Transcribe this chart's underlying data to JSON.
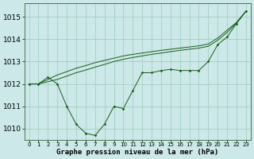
{
  "xlabel": "Graphe pression niveau de la mer (hPa)",
  "background_color": "#cce8e8",
  "grid_color": "#99ccbb",
  "line_color": "#1a5c1a",
  "x": [
    0,
    1,
    2,
    3,
    4,
    5,
    6,
    7,
    8,
    9,
    10,
    11,
    12,
    13,
    14,
    15,
    16,
    17,
    18,
    19,
    20,
    21,
    22,
    23
  ],
  "y_jagged": [
    1012.0,
    1012.0,
    1012.3,
    1012.0,
    1011.0,
    1010.2,
    1009.8,
    1009.7,
    1010.2,
    1011.0,
    1010.9,
    1011.7,
    1012.5,
    1012.5,
    1012.6,
    1012.65,
    1012.6,
    1012.6,
    1012.6,
    1013.0,
    1013.75,
    1014.1,
    1014.7,
    1015.25
  ],
  "y_line2": [
    1012.0,
    1012.0,
    1012.2,
    1012.4,
    1012.55,
    1012.7,
    1012.82,
    1012.95,
    1013.05,
    1013.15,
    1013.25,
    1013.32,
    1013.38,
    1013.44,
    1013.5,
    1013.55,
    1013.6,
    1013.65,
    1013.7,
    1013.78,
    1014.05,
    1014.4,
    1014.75,
    1015.25
  ],
  "y_line3": [
    1012.0,
    1012.0,
    1012.1,
    1012.2,
    1012.35,
    1012.5,
    1012.62,
    1012.75,
    1012.87,
    1013.0,
    1013.1,
    1013.18,
    1013.25,
    1013.32,
    1013.38,
    1013.44,
    1013.5,
    1013.55,
    1013.6,
    1013.68,
    1013.95,
    1014.3,
    1014.72,
    1015.25
  ],
  "ylim": [
    1009.5,
    1015.6
  ],
  "yticks": [
    1010,
    1011,
    1012,
    1013,
    1014,
    1015
  ],
  "xlim": [
    -0.5,
    23.5
  ],
  "xticks": [
    0,
    1,
    2,
    3,
    4,
    5,
    6,
    7,
    8,
    9,
    10,
    11,
    12,
    13,
    14,
    15,
    16,
    17,
    18,
    19,
    20,
    21,
    22,
    23
  ],
  "xlabel_fontsize": 6.5,
  "ytick_fontsize": 6.5,
  "xtick_fontsize": 5.0
}
